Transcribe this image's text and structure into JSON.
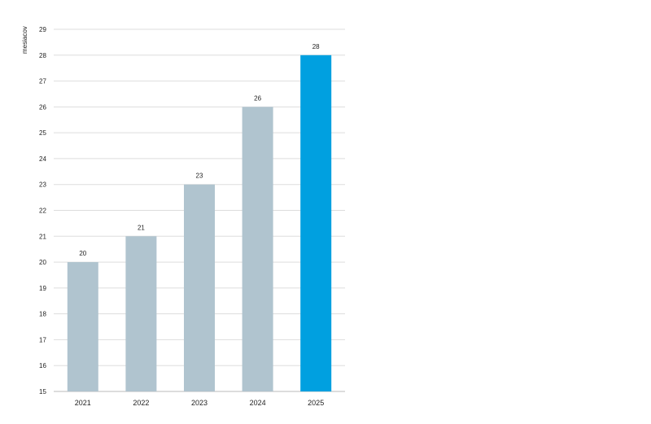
{
  "chart_data": {
    "type": "bar",
    "title": "",
    "xlabel": "",
    "ylabel": "mesiacov",
    "categories": [
      "2021",
      "2022",
      "2023",
      "2024",
      "2025"
    ],
    "values": [
      20,
      21,
      23,
      26,
      28
    ],
    "value_labels": [
      "20",
      "21",
      "23",
      "26",
      "28"
    ],
    "ylim": [
      15,
      29
    ],
    "yticks": [
      15,
      16,
      17,
      18,
      19,
      20,
      21,
      22,
      23,
      24,
      25,
      26,
      27,
      28,
      29
    ],
    "grid": true,
    "legend": "none",
    "colors": {
      "default_bar": "#b0c4cf",
      "highlight_bar": "#00a0e0",
      "grid": "#dddddd"
    },
    "highlight_index": 4
  }
}
